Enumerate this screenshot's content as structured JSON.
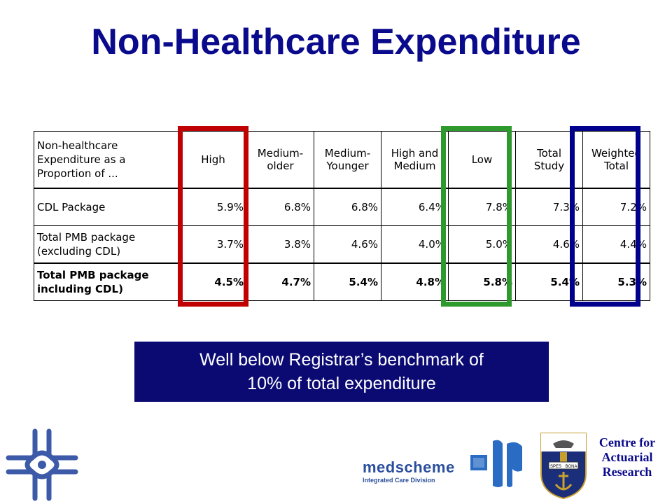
{
  "title": "Non-Healthcare Expenditure",
  "table": {
    "corner_header": [
      "Non-healthcare",
      "Expenditure as a",
      "Proportion of ..."
    ],
    "columns": [
      [
        "High"
      ],
      [
        "Medium-",
        "older"
      ],
      [
        "Medium-",
        "Younger"
      ],
      [
        "High and",
        "Medium"
      ],
      [
        "Low"
      ],
      [
        "Total",
        "Study"
      ],
      [
        "Weighted",
        "Total"
      ]
    ],
    "rows": [
      {
        "label": [
          "CDL Package"
        ],
        "values": [
          "5.9%",
          "6.8%",
          "6.8%",
          "6.4%",
          "7.8%",
          "7.3%",
          "7.2%"
        ],
        "bold": false
      },
      {
        "label": [
          "Total PMB package",
          "(excluding CDL)"
        ],
        "values": [
          "3.7%",
          "3.8%",
          "4.6%",
          "4.0%",
          "5.0%",
          "4.6%",
          "4.4%"
        ],
        "bold": false
      },
      {
        "label": [
          "Total PMB package",
          "including CDL)"
        ],
        "values": [
          "4.5%",
          "4.7%",
          "5.4%",
          "4.8%",
          "5.8%",
          "5.4%",
          "5.3%"
        ],
        "bold": true
      }
    ]
  },
  "highlights": [
    {
      "column": "High",
      "color": "#c00000"
    },
    {
      "column": "Low",
      "color": "#2e9a2e"
    },
    {
      "column": "Weighted Total",
      "color": "#00008c"
    }
  ],
  "banner": {
    "line1": "Well below Registrar’s benchmark of",
    "line2": "10% of total expenditure"
  },
  "logos": {
    "medscheme_name": "medscheme",
    "medscheme_division": "Integrated Care Division",
    "crest_motto_left": "SPES",
    "crest_motto_right": "BONA",
    "car_line1": "Centre for",
    "car_line2": "Actuarial",
    "car_line3": "Research"
  },
  "colors": {
    "title": "#0a0a8c",
    "banner_bg": "#0a0a72",
    "logo_blue": "#2a4e9c"
  }
}
